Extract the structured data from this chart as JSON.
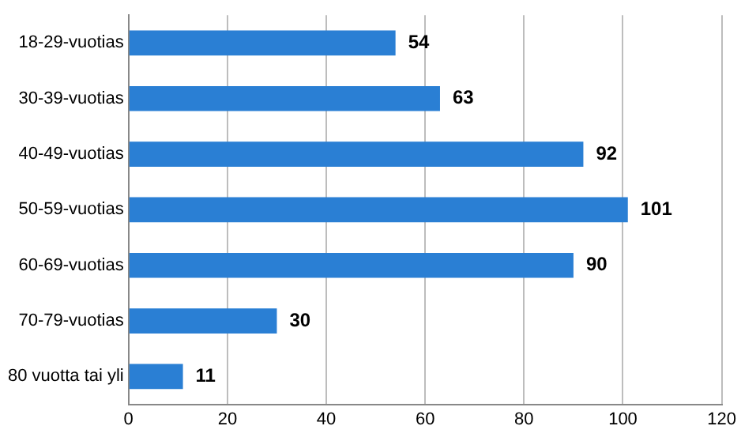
{
  "chart_data": {
    "type": "bar",
    "orientation": "horizontal",
    "categories": [
      "18-29-vuotias",
      "30-39-vuotias",
      "40-49-vuotias",
      "50-59-vuotias",
      "60-69-vuotias",
      "70-79-vuotias",
      "80 vuotta tai yli"
    ],
    "values": [
      54,
      63,
      92,
      101,
      90,
      30,
      11
    ],
    "color": "#2a7fd4",
    "xlim": [
      0,
      120
    ],
    "xticks": [
      0,
      20,
      40,
      60,
      80,
      100,
      120
    ],
    "grid": "x",
    "data_labels": true,
    "legend": false
  }
}
